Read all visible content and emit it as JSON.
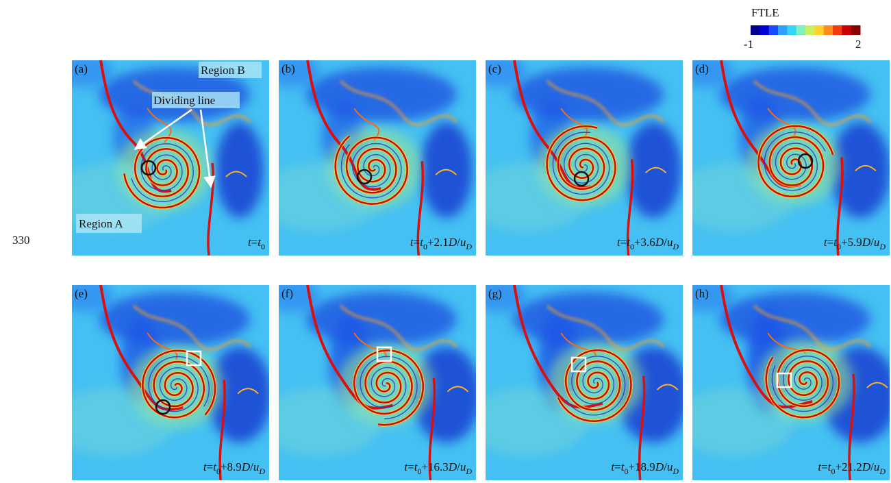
{
  "line_number": "330",
  "colorbar": {
    "title": "FTLE",
    "min_label": "-1",
    "max_label": "2",
    "colors": [
      "#00008f",
      "#0000d9",
      "#1a4cff",
      "#2fa0ff",
      "#33d6f5",
      "#7ff0c0",
      "#c8f060",
      "#ffd22a",
      "#ff8c1a",
      "#f23c0f",
      "#c80000",
      "#8a0000"
    ]
  },
  "annotations": {
    "region_a": "Region A",
    "region_b": "Region B",
    "dividing_line": "Dividing line"
  },
  "panels": [
    {
      "label": "(a)",
      "time": [
        {
          "text": "t",
          "style": "italic"
        },
        {
          "text": "=",
          "style": "normal"
        },
        {
          "text": "t",
          "style": "italic"
        },
        {
          "text": "0",
          "style": "sub"
        }
      ]
    },
    {
      "label": "(b)",
      "time": [
        {
          "text": "t",
          "style": "italic"
        },
        {
          "text": "=",
          "style": "normal"
        },
        {
          "text": "t",
          "style": "italic"
        },
        {
          "text": "0",
          "style": "sub"
        },
        {
          "text": "+2.1",
          "style": "normal"
        },
        {
          "text": "D",
          "style": "italic"
        },
        {
          "text": "/",
          "style": "normal"
        },
        {
          "text": "u",
          "style": "italic"
        },
        {
          "text": "D",
          "style": "sub-italic"
        }
      ]
    },
    {
      "label": "(c)",
      "time": [
        {
          "text": "t",
          "style": "italic"
        },
        {
          "text": "=",
          "style": "normal"
        },
        {
          "text": "t",
          "style": "italic"
        },
        {
          "text": "0",
          "style": "sub"
        },
        {
          "text": "+3.6",
          "style": "normal"
        },
        {
          "text": "D",
          "style": "italic"
        },
        {
          "text": "/",
          "style": "normal"
        },
        {
          "text": "u",
          "style": "italic"
        },
        {
          "text": "D",
          "style": "sub-italic"
        }
      ]
    },
    {
      "label": "(d)",
      "time": [
        {
          "text": "t",
          "style": "italic"
        },
        {
          "text": "=",
          "style": "normal"
        },
        {
          "text": "t",
          "style": "italic"
        },
        {
          "text": "0",
          "style": "sub"
        },
        {
          "text": "+5.9",
          "style": "normal"
        },
        {
          "text": "D",
          "style": "italic"
        },
        {
          "text": "/",
          "style": "normal"
        },
        {
          "text": "u",
          "style": "italic"
        },
        {
          "text": "D",
          "style": "sub-italic"
        }
      ]
    },
    {
      "label": "(e)",
      "time": [
        {
          "text": "t",
          "style": "italic"
        },
        {
          "text": "=",
          "style": "normal"
        },
        {
          "text": "t",
          "style": "italic"
        },
        {
          "text": "0",
          "style": "sub"
        },
        {
          "text": "+8.9",
          "style": "normal"
        },
        {
          "text": "D",
          "style": "italic"
        },
        {
          "text": "/",
          "style": "normal"
        },
        {
          "text": "u",
          "style": "italic"
        },
        {
          "text": "D",
          "style": "sub-italic"
        }
      ]
    },
    {
      "label": "(f)",
      "time": [
        {
          "text": "t",
          "style": "italic"
        },
        {
          "text": "=",
          "style": "normal"
        },
        {
          "text": "t",
          "style": "italic"
        },
        {
          "text": "0",
          "style": "sub"
        },
        {
          "text": "+16.3",
          "style": "normal"
        },
        {
          "text": "D",
          "style": "italic"
        },
        {
          "text": "/",
          "style": "normal"
        },
        {
          "text": "u",
          "style": "italic"
        },
        {
          "text": "D",
          "style": "sub-italic"
        }
      ]
    },
    {
      "label": "(g)",
      "time": [
        {
          "text": "t",
          "style": "italic"
        },
        {
          "text": "=",
          "style": "normal"
        },
        {
          "text": "t",
          "style": "italic"
        },
        {
          "text": "0",
          "style": "sub"
        },
        {
          "text": "+18.9",
          "style": "normal"
        },
        {
          "text": "D",
          "style": "italic"
        },
        {
          "text": "/",
          "style": "normal"
        },
        {
          "text": "u",
          "style": "italic"
        },
        {
          "text": "D",
          "style": "sub-italic"
        }
      ]
    },
    {
      "label": "(h)",
      "time": [
        {
          "text": "t",
          "style": "italic"
        },
        {
          "text": "=",
          "style": "normal"
        },
        {
          "text": "t",
          "style": "italic"
        },
        {
          "text": "0",
          "style": "sub"
        },
        {
          "text": "+21.2",
          "style": "normal"
        },
        {
          "text": "D",
          "style": "italic"
        },
        {
          "text": "/",
          "style": "normal"
        },
        {
          "text": "u",
          "style": "italic"
        },
        {
          "text": "D",
          "style": "sub-italic"
        }
      ]
    }
  ]
}
